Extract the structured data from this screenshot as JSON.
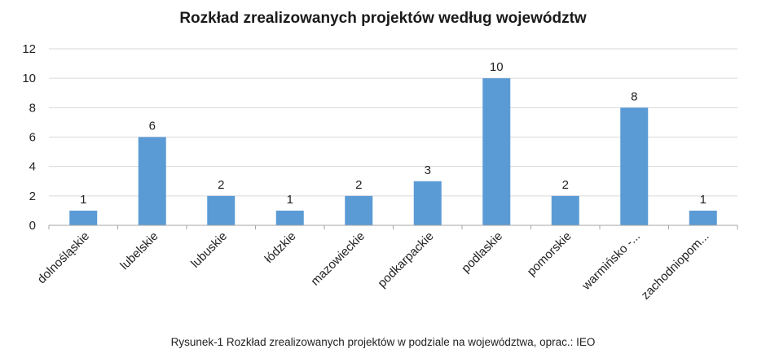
{
  "caption": "Rysunek-1 Rozkład zrealizowanych projektów w podziale na województwa, oprac.: IEO",
  "chart_data": {
    "type": "bar",
    "title": "Rozkład zrealizowanych projektów według województw",
    "categories": [
      "dolnośląskie",
      "lubelskie",
      "lubuskie",
      "łódzkie",
      "mazowieckie",
      "podkarpackie",
      "podlaskie",
      "pomorskie",
      "warmińsko -...",
      "zachodniopom..."
    ],
    "values": [
      1,
      6,
      2,
      1,
      2,
      3,
      10,
      2,
      8,
      1
    ],
    "data_labels": [
      "1",
      "6",
      "2",
      "1",
      "2",
      "3",
      "10",
      "2",
      "8",
      "1"
    ],
    "yticks": [
      "0",
      "2",
      "4",
      "6",
      "8",
      "10",
      "12"
    ],
    "ylim": [
      0,
      12
    ],
    "grid": true,
    "legend": "none",
    "bar_color": "#5b9bd5",
    "grid_color": "#d9d9d9",
    "axis_color": "#a6a6a6"
  }
}
